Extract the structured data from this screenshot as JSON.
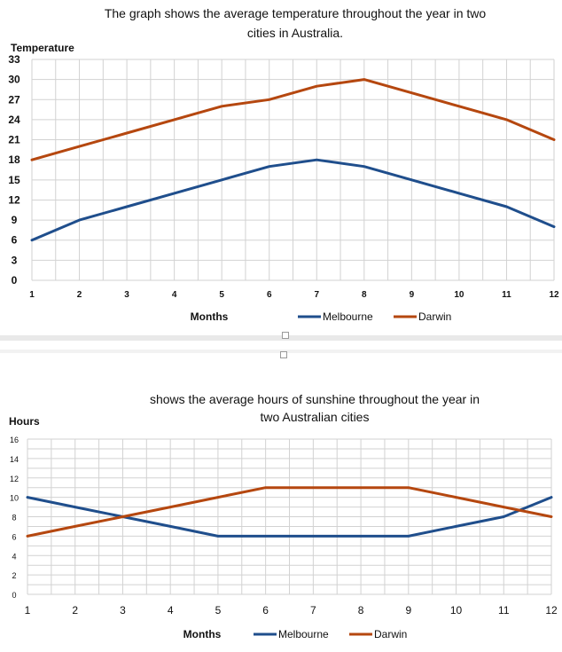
{
  "chart_data": [
    {
      "type": "line",
      "title": [
        "The graph shows the average temperature throughout the year in two",
        "cities in Australia."
      ],
      "ylabel": "Temperature",
      "xlabel": "Months",
      "x": [
        1,
        2,
        3,
        4,
        5,
        6,
        7,
        8,
        9,
        10,
        11,
        12
      ],
      "ylim": [
        0,
        33
      ],
      "yticks": [
        0,
        3,
        6,
        9,
        12,
        15,
        18,
        21,
        24,
        27,
        30,
        33
      ],
      "grid": true,
      "legend": "bottom",
      "series": [
        {
          "name": "Melbourne",
          "color": "#1f4e8c",
          "values": [
            6,
            9,
            11,
            13,
            15,
            17,
            18,
            17,
            15,
            13,
            11,
            8
          ]
        },
        {
          "name": "Darwin",
          "color": "#b5470f",
          "values": [
            18,
            20,
            22,
            24,
            26,
            27,
            29,
            30,
            28,
            26,
            24,
            21
          ]
        }
      ]
    },
    {
      "type": "line",
      "title": [
        "shows the average hours of sunshine throughout the year in",
        "two Australian cities"
      ],
      "ylabel": "Hours",
      "xlabel": "Months",
      "x": [
        1,
        2,
        3,
        4,
        5,
        6,
        7,
        8,
        9,
        10,
        11,
        12
      ],
      "ylim": [
        0,
        16
      ],
      "yticks": [
        0,
        2,
        4,
        6,
        8,
        10,
        12,
        14,
        16
      ],
      "grid": true,
      "legend": "bottom",
      "series": [
        {
          "name": "Melbourne",
          "color": "#1f4e8c",
          "values": [
            10,
            9,
            8,
            7,
            6,
            6,
            6,
            6,
            6,
            7,
            8,
            10
          ]
        },
        {
          "name": "Darwin",
          "color": "#b5470f",
          "values": [
            6,
            7,
            8,
            9,
            10,
            11,
            11,
            11,
            11,
            10,
            9,
            8
          ]
        }
      ]
    }
  ]
}
